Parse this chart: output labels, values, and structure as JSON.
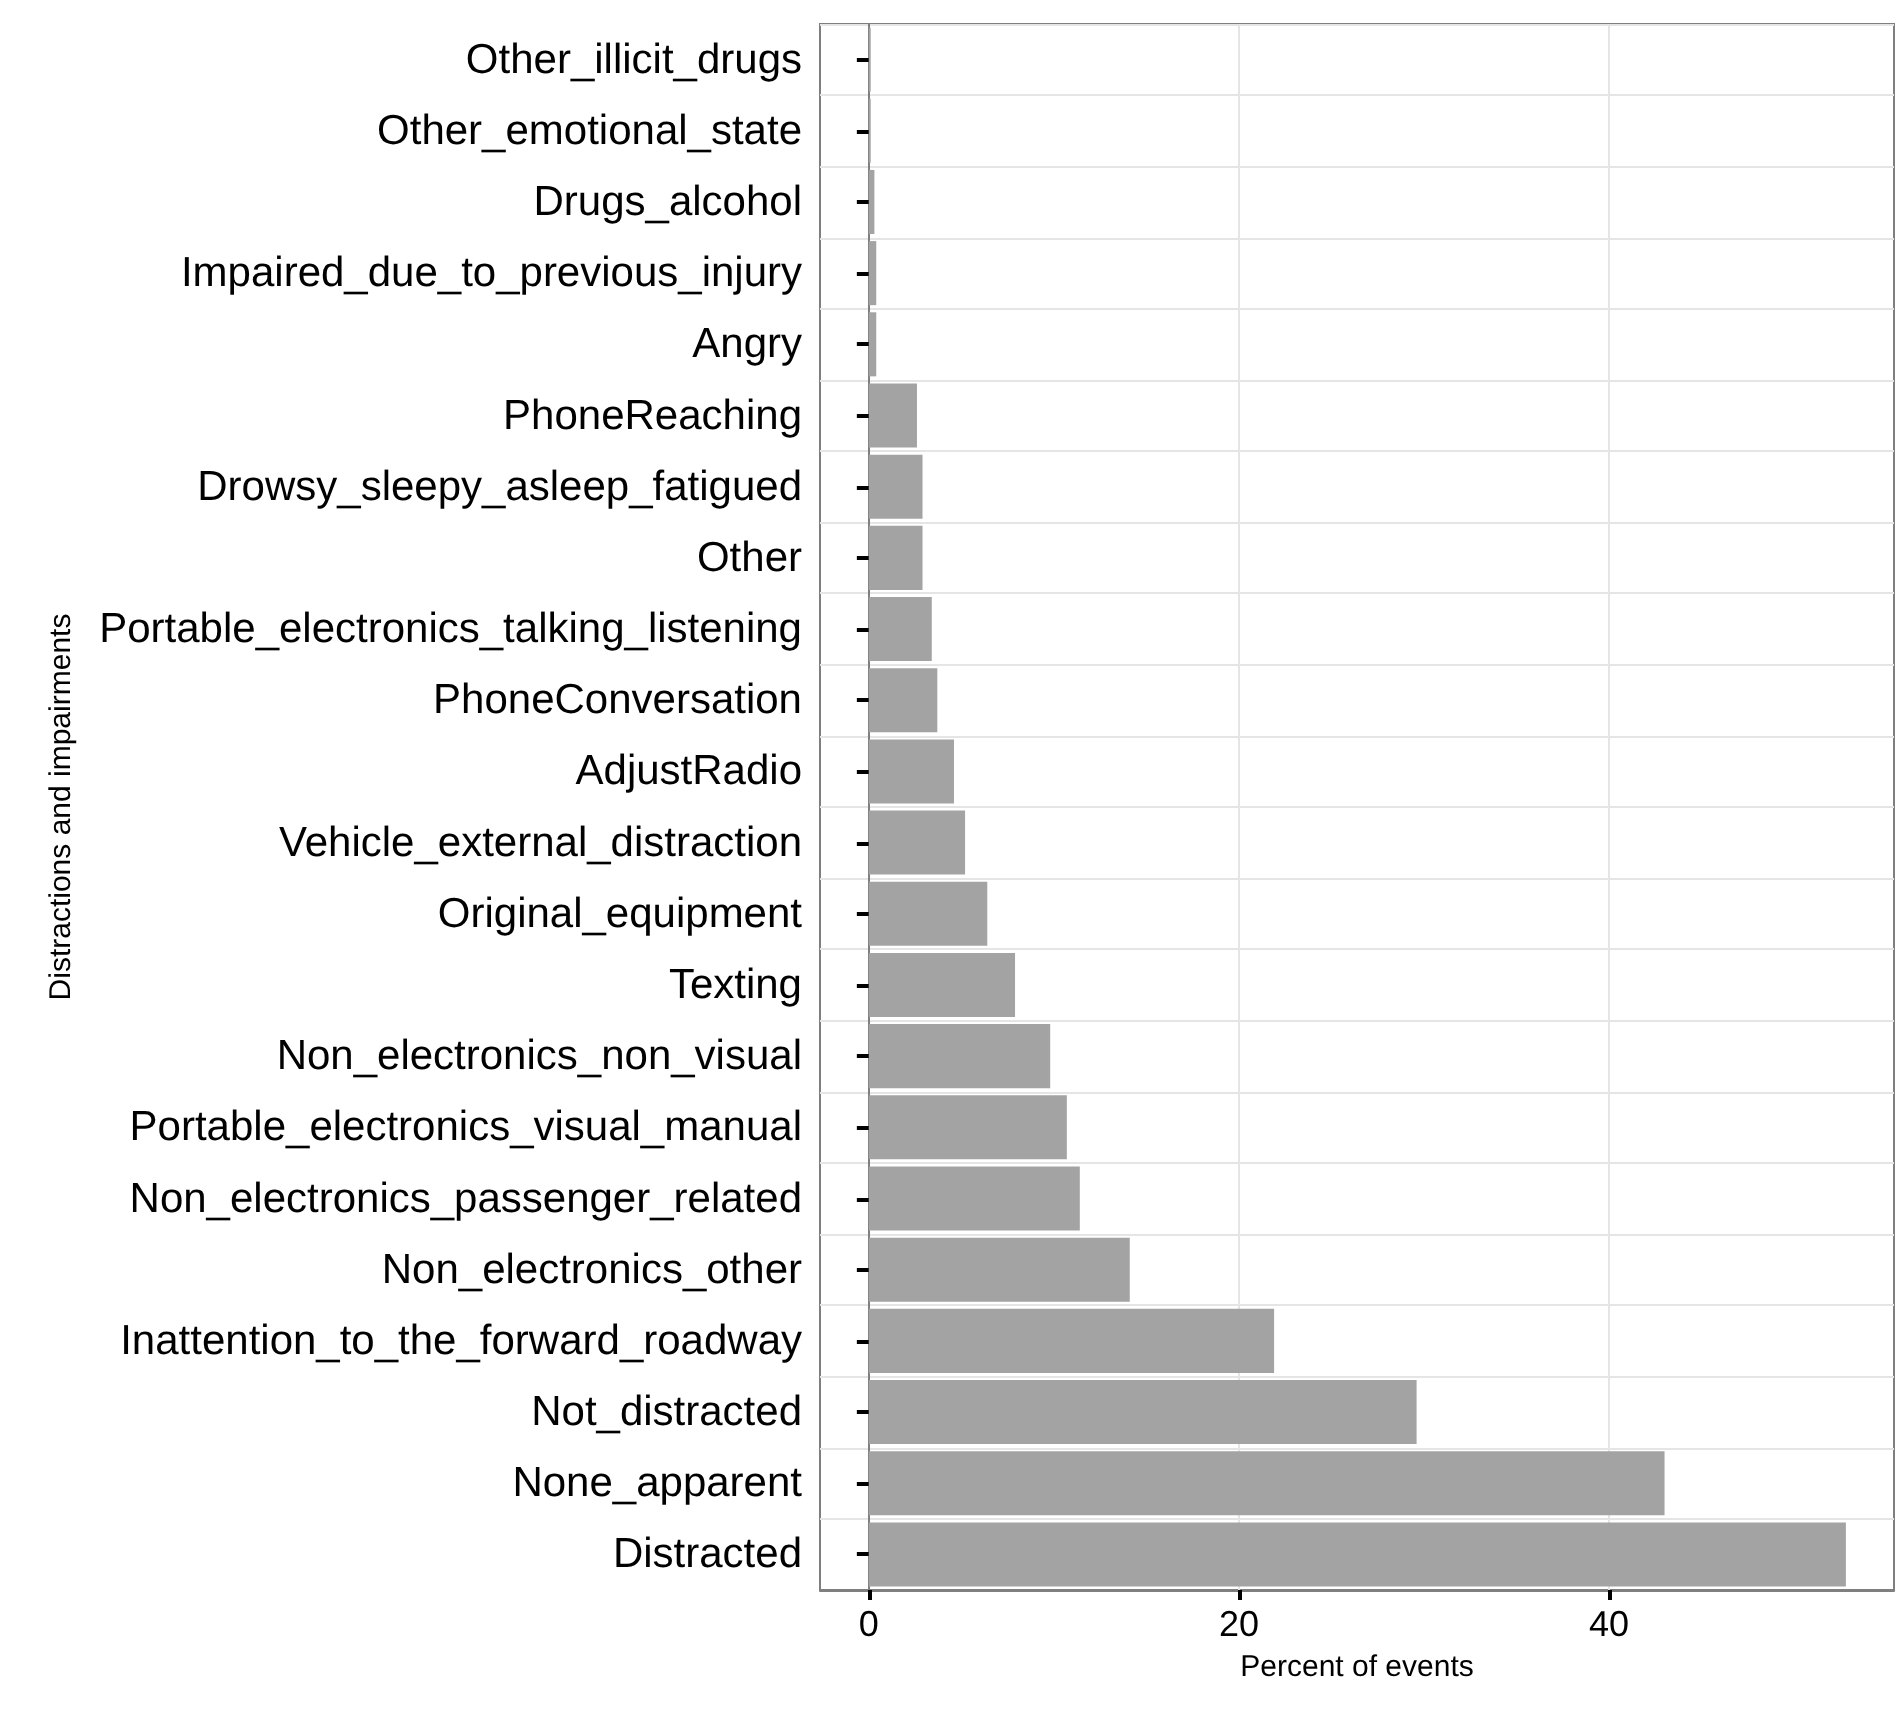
{
  "chart_data": {
    "type": "bar",
    "orientation": "horizontal",
    "xlabel": "Percent of events",
    "ylabel": "Distractions and impairments",
    "categories": [
      "Other_illicit_drugs",
      "Other_emotional_state",
      "Drugs_alcohol",
      "Impaired_due_to_previous_injury",
      "Angry",
      "PhoneReaching",
      "Drowsy_sleepy_asleep_fatigued",
      "Other",
      "Portable_electronics_talking_listening",
      "PhoneConversation",
      "AdjustRadio",
      "Vehicle_external_distraction",
      "Original_equipment",
      "Texting",
      "Non_electronics_non_visual",
      "Portable_electronics_visual_manual",
      "Non_electronics_passenger_related",
      "Non_electronics_other",
      "Inattention_to_the_forward_roadway",
      "Not_distracted",
      "None_apparent",
      "Distracted"
    ],
    "values": [
      0.1,
      0.1,
      0.3,
      0.4,
      0.4,
      2.6,
      2.9,
      2.9,
      3.4,
      3.7,
      4.6,
      5.2,
      6.4,
      7.9,
      9.8,
      10.7,
      11.4,
      14.1,
      21.9,
      29.6,
      43.0,
      52.8
    ],
    "color": "#a3a3a3",
    "xlim": [
      -2.64,
      55.4
    ],
    "xticks": [
      0,
      20,
      40
    ],
    "grid": true
  }
}
